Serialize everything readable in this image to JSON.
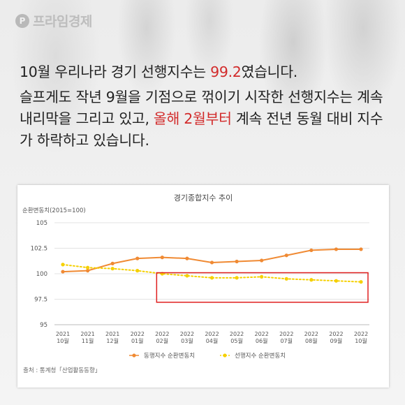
{
  "brand": {
    "logo_text": "프라임경제",
    "logo_symbol": "P"
  },
  "paragraph1": {
    "before": "10월 우리나라 경기 선행지수는 ",
    "highlight": "99.2",
    "after": "였습니다."
  },
  "paragraph2": {
    "before": "슬프게도 작년 9월을 기점으로 꺾이기 시작한 선행지수는 계속 내리막을 그리고 있고, ",
    "highlight": "올해 2월부터",
    "after": " 계속 전년 동월 대비 지수가 하락하고 있습니다."
  },
  "colors": {
    "highlight_text": "#d22b2b",
    "coincident": "#f08a33",
    "leading": "#f5d000",
    "box": "#e02020"
  },
  "source": "출처 : 통계청「산업활동동향」",
  "chart_data": {
    "type": "line",
    "title": "경기종합지수 추이",
    "ylabel": "순환변동치(2015=100)",
    "xlabel": "",
    "ylim": [
      95,
      105
    ],
    "yticks": [
      "105",
      "102.5",
      "100",
      "97.5",
      "95"
    ],
    "ytick_values": [
      105,
      102.5,
      100,
      97.5,
      95
    ],
    "categories": [
      {
        "year": "2021",
        "month": "10월"
      },
      {
        "year": "2021",
        "month": "11월"
      },
      {
        "year": "2021",
        "month": "12월"
      },
      {
        "year": "2022",
        "month": "01월"
      },
      {
        "year": "2022",
        "month": "02월"
      },
      {
        "year": "2022",
        "month": "03월"
      },
      {
        "year": "2022",
        "month": "04월"
      },
      {
        "year": "2022",
        "month": "05월"
      },
      {
        "year": "2022",
        "month": "06월"
      },
      {
        "year": "2022",
        "month": "07월"
      },
      {
        "year": "2022",
        "month": "08월"
      },
      {
        "year": "2022",
        "month": "09월"
      },
      {
        "year": "2022",
        "month": "10월"
      }
    ],
    "series": [
      {
        "name": "동행지수 순환변동치",
        "style": "solid",
        "color": "#f08a33",
        "values": [
          100.2,
          100.3,
          101.0,
          101.5,
          101.6,
          101.5,
          101.1,
          101.2,
          101.3,
          101.8,
          102.3,
          102.4,
          102.4
        ]
      },
      {
        "name": "선행지수 순환변동치",
        "style": "dotted",
        "color": "#f5d000",
        "values": [
          100.9,
          100.6,
          100.5,
          100.3,
          100.0,
          99.8,
          99.6,
          99.6,
          99.7,
          99.5,
          99.4,
          99.3,
          99.2
        ]
      }
    ],
    "highlight_box": {
      "from_category": "2022 02월",
      "to_category": "2022 10월",
      "y_range": [
        97.2,
        100.1
      ]
    },
    "grid": "horizontal",
    "legend_position": "bottom"
  }
}
